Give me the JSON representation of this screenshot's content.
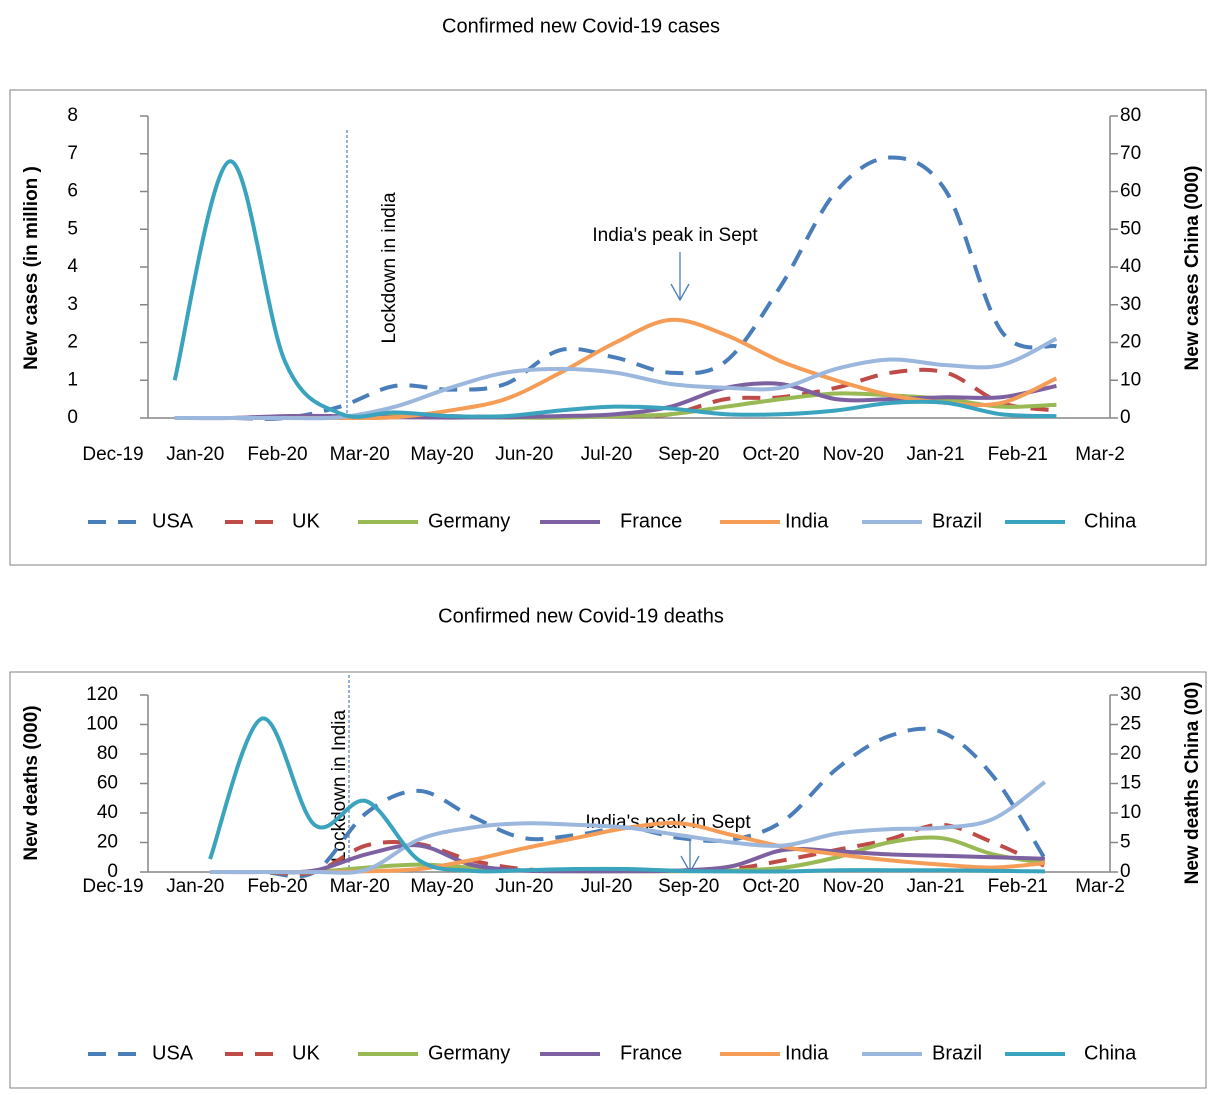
{
  "chart_data": [
    {
      "type": "line",
      "title": "Confirmed new Covid-19 cases",
      "ylabel": "New cases (in million )",
      "y2label": "New cases China (000)",
      "vline_label": "Lockdown in india",
      "peak_label": "India's peak in  Sept",
      "xlim": [
        0,
        12
      ],
      "xticks": [
        {
          "value": 0,
          "label": "Dec-19"
        },
        {
          "value": 1,
          "label": "Jan-20"
        },
        {
          "value": 2,
          "label": "Feb-20"
        },
        {
          "value": 3,
          "label": "Mar-20"
        },
        {
          "value": 4,
          "label": "May-20"
        },
        {
          "value": 5,
          "label": "Jun-20"
        },
        {
          "value": 6,
          "label": "Jul-20"
        },
        {
          "value": 7,
          "label": "Sep-20"
        },
        {
          "value": 8,
          "label": "Oct-20"
        },
        {
          "value": 9,
          "label": "Nov-20"
        },
        {
          "value": 10,
          "label": "Jan-21"
        },
        {
          "value": 11,
          "label": "Feb-21"
        },
        {
          "value": 12,
          "label": "Mar-2"
        }
      ],
      "x": [
        0.75,
        1.42,
        2.09,
        2.76,
        3.43,
        4.1,
        4.77,
        5.44,
        6.11,
        6.78,
        7.45,
        8.12,
        8.79,
        9.46,
        10.13,
        10.8,
        11.47
      ],
      "ylim": [
        0,
        8
      ],
      "yticks": [
        0,
        1,
        2,
        3,
        4,
        5,
        6,
        7,
        8
      ],
      "y2lim": [
        0,
        80
      ],
      "y2ticks": [
        0,
        10,
        20,
        30,
        40,
        50,
        60,
        70,
        80
      ],
      "series": [
        {
          "name": "USA",
          "color": "#4a7ebb",
          "dashed": true,
          "values": [
            0,
            0,
            0,
            0.3,
            0.85,
            0.75,
            0.9,
            1.8,
            1.6,
            1.2,
            1.5,
            3.5,
            6.0,
            6.9,
            6.0,
            2.3,
            1.9
          ]
        },
        {
          "name": "UK",
          "color": "#be4b48",
          "dashed": true,
          "values": [
            0,
            0,
            0,
            0.05,
            0.1,
            0.05,
            0.03,
            0.03,
            0.05,
            0.1,
            0.5,
            0.55,
            0.8,
            1.2,
            1.2,
            0.4,
            0.2
          ]
        },
        {
          "name": "Germany",
          "color": "#98b954",
          "dashed": false,
          "values": [
            0,
            0,
            0,
            0.02,
            0.05,
            0.02,
            0.01,
            0.01,
            0.05,
            0.1,
            0.3,
            0.5,
            0.65,
            0.6,
            0.5,
            0.3,
            0.35
          ]
        },
        {
          "name": "France",
          "color": "#7d60a0",
          "dashed": false,
          "values": [
            0,
            0,
            0.05,
            0.05,
            0.02,
            0.01,
            0.02,
            0.05,
            0.1,
            0.3,
            0.8,
            0.9,
            0.5,
            0.5,
            0.55,
            0.55,
            0.85
          ]
        },
        {
          "name": "India",
          "color": "#f59d56",
          "dashed": false,
          "values": [
            0,
            0,
            0,
            0,
            0.02,
            0.2,
            0.5,
            1.2,
            2.0,
            2.6,
            2.2,
            1.5,
            1.0,
            0.6,
            0.4,
            0.4,
            1.05
          ]
        },
        {
          "name": "Brazil",
          "color": "#9bb7dd",
          "dashed": false,
          "values": [
            0,
            0,
            0,
            0.02,
            0.3,
            0.8,
            1.2,
            1.3,
            1.2,
            0.9,
            0.8,
            0.8,
            1.3,
            1.55,
            1.4,
            1.4,
            2.1
          ]
        },
        {
          "name": "China",
          "color": "#3aa3bd",
          "dashed": false,
          "axis": "y2",
          "values": [
            10,
            68,
            15,
            1.2,
            1.5,
            0.5,
            0.5,
            2,
            3,
            2.5,
            1,
            1,
            2,
            4,
            4,
            1,
            0.5
          ]
        }
      ]
    },
    {
      "type": "line",
      "title": "Confirmed new Covid-19 deaths",
      "ylabel": "New  deaths  (000)",
      "y2label": "New deaths China (00)",
      "vline_label": "Lockdown in India",
      "peak_label": "India's peak in  Sept",
      "xlim": [
        0,
        12
      ],
      "xticks": [
        {
          "value": 0,
          "label": "Dec-19"
        },
        {
          "value": 1,
          "label": "Jan-20"
        },
        {
          "value": 2,
          "label": "Feb-20"
        },
        {
          "value": 3,
          "label": "Mar-20"
        },
        {
          "value": 4,
          "label": "May-20"
        },
        {
          "value": 5,
          "label": "Jun-20"
        },
        {
          "value": 6,
          "label": "Jul-20"
        },
        {
          "value": 7,
          "label": "Sep-20"
        },
        {
          "value": 8,
          "label": "Oct-20"
        },
        {
          "value": 9,
          "label": "Nov-20"
        },
        {
          "value": 10,
          "label": "Jan-21"
        },
        {
          "value": 11,
          "label": "Feb-21"
        },
        {
          "value": 12,
          "label": "Mar-2"
        }
      ],
      "x": [
        1.18,
        1.81,
        2.45,
        3.08,
        3.72,
        4.35,
        4.99,
        5.62,
        6.26,
        6.89,
        7.53,
        8.16,
        8.8,
        9.43,
        10.07,
        10.7,
        11.33
      ],
      "ylim": [
        0,
        120
      ],
      "yticks": [
        0,
        20,
        40,
        60,
        80,
        100,
        120
      ],
      "y2lim": [
        0,
        30
      ],
      "y2ticks": [
        0,
        5,
        10,
        15,
        20,
        25,
        30
      ],
      "series": [
        {
          "name": "USA",
          "color": "#4a7ebb",
          "dashed": true,
          "values": [
            0,
            0,
            0,
            40,
            55,
            38,
            23,
            25,
            30,
            23,
            22,
            35,
            70,
            92,
            95,
            65,
            9
          ]
        },
        {
          "name": "UK",
          "color": "#be4b48",
          "dashed": true,
          "values": [
            0,
            0,
            0,
            18,
            19,
            8,
            2,
            1,
            1,
            1,
            2,
            8,
            15,
            22,
            32,
            20,
            4
          ]
        },
        {
          "name": "Germany",
          "color": "#98b954",
          "dashed": false,
          "values": [
            0,
            0,
            0,
            3,
            5,
            3,
            1,
            0.5,
            0.5,
            0.5,
            1,
            3,
            10,
            20,
            23,
            12,
            6
          ]
        },
        {
          "name": "France",
          "color": "#7d60a0",
          "dashed": false,
          "values": [
            0,
            0,
            1,
            12,
            18,
            5,
            1,
            0.5,
            0.5,
            1,
            4,
            15,
            14,
            12,
            11,
            10,
            9
          ]
        },
        {
          "name": "India",
          "color": "#f59d56",
          "dashed": false,
          "values": [
            0,
            0,
            0,
            0.5,
            2,
            8,
            16,
            23,
            30,
            33,
            25,
            17,
            12,
            8,
            5,
            3,
            6
          ]
        },
        {
          "name": "Brazil",
          "color": "#9bb7dd",
          "dashed": false,
          "values": [
            0,
            0,
            0,
            1.5,
            22,
            30,
            33,
            32,
            30,
            25,
            20,
            18,
            26,
            29,
            30,
            36,
            61
          ]
        },
        {
          "name": "China",
          "color": "#3aa3bd",
          "dashed": false,
          "axis": "y2",
          "values": [
            2.2,
            26,
            8,
            12,
            2,
            0.2,
            0.3,
            0.5,
            0.5,
            0.2,
            0.1,
            0.1,
            0.3,
            0.3,
            0.3,
            0.2,
            0.1
          ]
        }
      ]
    }
  ]
}
